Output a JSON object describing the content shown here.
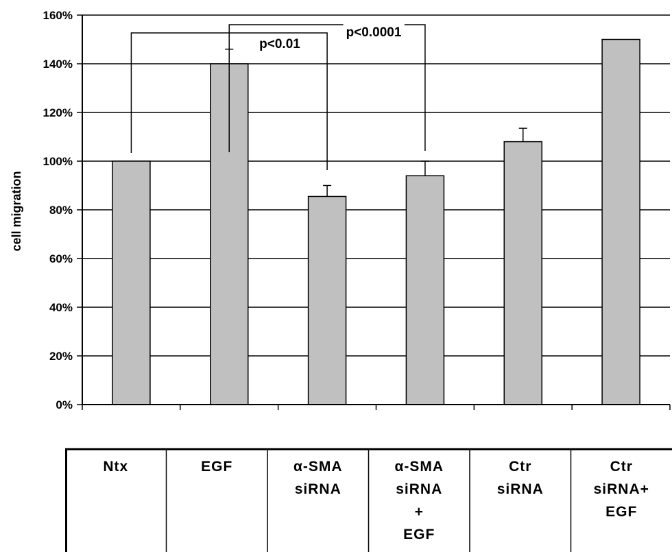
{
  "chart_data": {
    "type": "bar",
    "ylabel": "cell migration",
    "ylim": [
      0,
      160
    ],
    "y_tick_step": 20,
    "y_tick_format": "percent",
    "grid": true,
    "categories": [
      [
        "Ntx"
      ],
      [
        "EGF"
      ],
      [
        "α-SMA",
        "siRNA"
      ],
      [
        "α-SMA",
        "siRNA",
        "+",
        "EGF"
      ],
      [
        "Ctr",
        "siRNA"
      ],
      [
        "Ctr",
        "siRNA+",
        "EGF"
      ]
    ],
    "values": [
      100,
      140,
      85.5,
      94,
      108,
      150
    ],
    "error": [
      0,
      6,
      4.5,
      6,
      5.5,
      0
    ],
    "bar_color": "#c0c0c0",
    "annotations": [
      {
        "label": "p<0.01",
        "from": 0,
        "to": 2
      },
      {
        "label": "p<0.0001",
        "from": 1,
        "to": 3
      }
    ]
  }
}
